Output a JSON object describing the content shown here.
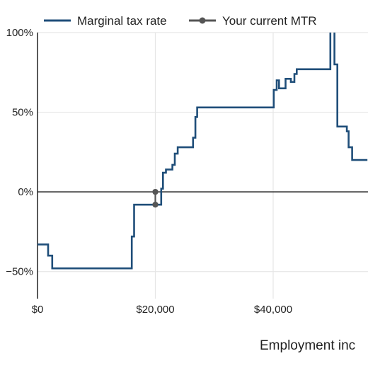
{
  "chart_data": {
    "type": "line",
    "title": "",
    "xlabel": "Employment inc",
    "ylabel": "",
    "xlim": [
      0,
      42400
    ],
    "ylim": [
      -67,
      100
    ],
    "x_ticks": [
      {
        "value": 0,
        "label": "$0"
      },
      {
        "value": 20000,
        "label": "$20,000"
      },
      {
        "value": 40000,
        "label": "$40,000"
      },
      {
        "value": 60000,
        "label": "$"
      }
    ],
    "y_ticks": [
      {
        "value": 100,
        "label": "100%"
      },
      {
        "value": 50,
        "label": "50%"
      },
      {
        "value": 0,
        "label": "0%"
      },
      {
        "value": -50,
        "label": "−50%"
      }
    ],
    "grid": true,
    "legend_position": "top",
    "series": [
      {
        "name": "Marginal tax rate",
        "color": "#1f4e79",
        "shape": "step",
        "points": [
          [
            0,
            -33
          ],
          [
            1800,
            -33
          ],
          [
            1800,
            -40
          ],
          [
            2500,
            -40
          ],
          [
            2500,
            -48
          ],
          [
            16000,
            -48
          ],
          [
            16000,
            -28
          ],
          [
            16400,
            -28
          ],
          [
            16400,
            -8
          ],
          [
            21000,
            -8
          ],
          [
            21000,
            2
          ],
          [
            21300,
            2
          ],
          [
            21300,
            12
          ],
          [
            21800,
            12
          ],
          [
            21800,
            14
          ],
          [
            22900,
            14
          ],
          [
            22900,
            17
          ],
          [
            23300,
            17
          ],
          [
            23300,
            24
          ],
          [
            23800,
            24
          ],
          [
            23800,
            28
          ],
          [
            26400,
            28
          ],
          [
            26400,
            34
          ],
          [
            26800,
            34
          ],
          [
            26800,
            47
          ],
          [
            27100,
            47
          ],
          [
            27100,
            53
          ],
          [
            40100,
            53
          ],
          [
            40100,
            64
          ],
          [
            40600,
            64
          ],
          [
            40600,
            70
          ],
          [
            41000,
            70
          ],
          [
            41000,
            65
          ],
          [
            42100,
            65
          ],
          [
            42100,
            71
          ],
          [
            43000,
            71
          ],
          [
            43000,
            69
          ],
          [
            43600,
            69
          ],
          [
            43600,
            74
          ],
          [
            44000,
            74
          ],
          [
            44000,
            77
          ],
          [
            49700,
            77
          ],
          [
            49700,
            100
          ]
        ],
        "points_after": [
          [
            50400,
            100
          ],
          [
            50400,
            80
          ],
          [
            50900,
            80
          ],
          [
            50900,
            41
          ],
          [
            52500,
            41
          ],
          [
            52500,
            38
          ],
          [
            52800,
            38
          ],
          [
            52800,
            28
          ],
          [
            53400,
            28
          ],
          [
            53400,
            20
          ],
          [
            56000,
            20
          ]
        ]
      },
      {
        "name": "Your current MTR",
        "color": "#555555",
        "shape": "markers",
        "points": [
          [
            20000,
            0
          ],
          [
            20000,
            -8
          ]
        ]
      }
    ]
  }
}
